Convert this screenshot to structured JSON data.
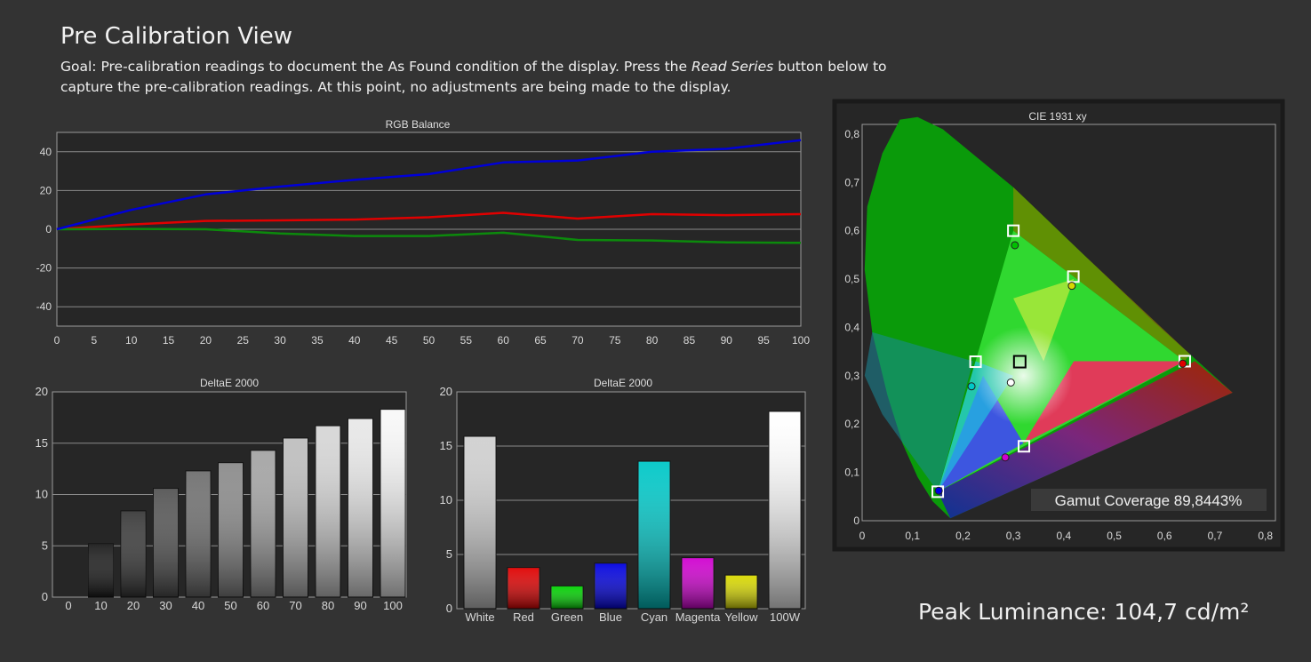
{
  "page": {
    "title": "Pre Calibration View",
    "goal_prefix": "Goal: Pre-calibration readings to document the As Found condition of the display. Press the ",
    "goal_emphasis": "Read Series",
    "goal_suffix": " button below to capture the pre-calibration readings. At this point, no adjustments are being made to the display.",
    "peak_luminance": "Peak Luminance: 104,7 cd/m²"
  },
  "colors": {
    "background": "#333333",
    "plot_bg": "#242424",
    "red": "#e00000",
    "green": "#0c8a0c",
    "blue": "#0000d8"
  },
  "chart_data": [
    {
      "id": "rgb",
      "type": "line",
      "title": "RGB Balance",
      "x": [
        0,
        5,
        10,
        15,
        20,
        25,
        30,
        35,
        40,
        45,
        50,
        55,
        60,
        65,
        70,
        75,
        80,
        85,
        90,
        95,
        100
      ],
      "xlim": [
        0,
        100
      ],
      "ylim": [
        -50,
        50
      ],
      "yticks": [
        40,
        20,
        0,
        -20,
        -40
      ],
      "ytick_labels": [
        "40",
        "20",
        "0",
        "-20",
        "-40"
      ],
      "grid": true,
      "series": [
        {
          "color": "#e00000",
          "x": [
            0,
            10,
            20,
            30,
            40,
            50,
            60,
            70,
            80,
            90,
            100
          ],
          "values": [
            0,
            2.5,
            4.3,
            4.6,
            5,
            6.2,
            8.5,
            5.5,
            7.8,
            7.3,
            7.8
          ]
        },
        {
          "color": "#0c8a0c",
          "x": [
            0,
            10,
            20,
            30,
            40,
            50,
            60,
            70,
            80,
            90,
            100
          ],
          "values": [
            0,
            0.2,
            0,
            -2.2,
            -3.5,
            -3.5,
            -1.8,
            -5.5,
            -5.8,
            -6.8,
            -7
          ]
        },
        {
          "color": "#0000d8",
          "x": [
            0,
            10,
            20,
            30,
            40,
            50,
            60,
            70,
            80,
            90,
            100
          ],
          "values": [
            0,
            10,
            18,
            22,
            25.5,
            28.5,
            34.5,
            35.5,
            40,
            41.5,
            46
          ]
        }
      ]
    },
    {
      "id": "de_gray",
      "type": "bar",
      "title": "DeltaE 2000",
      "categories": [
        "0",
        "10",
        "20",
        "30",
        "40",
        "50",
        "60",
        "70",
        "80",
        "90",
        "100"
      ],
      "values": [
        0,
        5.2,
        8.4,
        10.6,
        12.3,
        13.1,
        14.3,
        15.5,
        16.7,
        17.4,
        18.3
      ],
      "ylim": [
        0,
        20
      ],
      "yticks": [
        0,
        5,
        10,
        15,
        20
      ],
      "ytick_labels": [
        "0",
        "5",
        "10",
        "15",
        "20"
      ],
      "bar_colors": [
        "#000000",
        "#1b1b1b",
        "#3a3a3a",
        "#555555",
        "#707070",
        "#8b8b8b",
        "#a4a4a4",
        "#bebebe",
        "#d6d6d6",
        "#e8e8e8",
        "#f8f8f8"
      ]
    },
    {
      "id": "de_color",
      "type": "bar",
      "title": "DeltaE 2000",
      "categories": [
        "White",
        "Red",
        "Green",
        "Blue",
        "Cyan",
        "Magenta",
        "Yellow",
        "100W"
      ],
      "values": [
        15.9,
        3.8,
        2.1,
        4.2,
        13.6,
        4.7,
        3.1,
        18.2
      ],
      "ylim": [
        0,
        20
      ],
      "yticks": [
        0,
        5,
        10,
        15,
        20
      ],
      "ytick_labels": [
        "0",
        "5",
        "10",
        "15",
        "20"
      ],
      "bar_colors": [
        "#d0d0d0",
        "#e00000",
        "#00d000",
        "#0000e0",
        "#00c8c8",
        "#d000d0",
        "#d8d800",
        "#ffffff"
      ]
    },
    {
      "id": "cie",
      "type": "scatter",
      "title": "CIE 1931 xy",
      "xlim": [
        0,
        0.82
      ],
      "ylim": [
        0,
        0.82
      ],
      "xticks": [
        0,
        0.1,
        0.2,
        0.3,
        0.4,
        0.5,
        0.6,
        0.7,
        0.8
      ],
      "xtick_labels": [
        "0",
        "0,1",
        "0,2",
        "0,3",
        "0,4",
        "0,5",
        "0,6",
        "0,7",
        "0,8"
      ],
      "yticks": [
        0,
        0.1,
        0.2,
        0.3,
        0.4,
        0.5,
        0.6,
        0.7,
        0.8
      ],
      "ytick_labels": [
        "0",
        "0,1",
        "0,2",
        "0,3",
        "0,4",
        "0,5",
        "0,6",
        "0,7",
        "0,8"
      ],
      "targets": [
        {
          "name": "Red",
          "x": 0.64,
          "y": 0.33
        },
        {
          "name": "Green",
          "x": 0.3,
          "y": 0.6
        },
        {
          "name": "Blue",
          "x": 0.15,
          "y": 0.06
        },
        {
          "name": "Cyan",
          "x": 0.225,
          "y": 0.329
        },
        {
          "name": "Magenta",
          "x": 0.321,
          "y": 0.154
        },
        {
          "name": "Yellow",
          "x": 0.419,
          "y": 0.505
        },
        {
          "name": "White",
          "x": 0.3127,
          "y": 0.329
        }
      ],
      "measured": [
        {
          "name": "Red",
          "x": 0.636,
          "y": 0.325,
          "color": "#e00000"
        },
        {
          "name": "Green",
          "x": 0.303,
          "y": 0.57,
          "color": "#00c000"
        },
        {
          "name": "Blue",
          "x": 0.152,
          "y": 0.062,
          "color": "#0000e0"
        },
        {
          "name": "Cyan",
          "x": 0.217,
          "y": 0.278,
          "color": "#00c8c8"
        },
        {
          "name": "Magenta",
          "x": 0.284,
          "y": 0.131,
          "color": "#d000d0"
        },
        {
          "name": "Yellow",
          "x": 0.416,
          "y": 0.486,
          "color": "#d8d800"
        },
        {
          "name": "White",
          "x": 0.295,
          "y": 0.286,
          "color": "#ffffff"
        }
      ],
      "gamut_coverage": "Gamut Coverage 89,8443%"
    }
  ]
}
